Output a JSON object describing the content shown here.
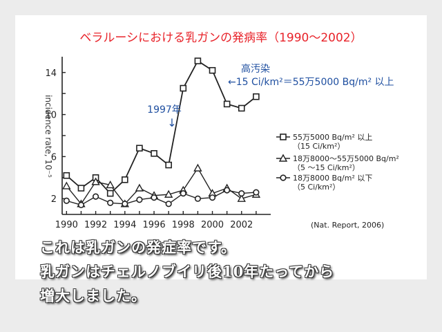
{
  "chart_data": {
    "type": "line",
    "title": "ベラルーシにおける乳ガンの発病率（1990〜2002）",
    "ylabel": "incidence rate, 10⁻⁵",
    "xlabel": "",
    "x": [
      1990,
      1991,
      1992,
      1993,
      1994,
      1995,
      1996,
      1997,
      1998,
      1999,
      2000,
      2001,
      2002,
      2003
    ],
    "x_ticks": [
      "1990",
      "1992",
      "1994",
      "1996",
      "1998",
      "2000",
      "2002"
    ],
    "y_ticks": [
      "2",
      "4",
      "6",
      "8",
      "10",
      "12",
      "14"
    ],
    "xlim": [
      1989.7,
      2004
    ],
    "ylim": [
      0.5,
      15.5
    ],
    "grid": false,
    "legend_position": "right",
    "series": [
      {
        "name": "55万5000 Bq/m² 以上",
        "name_sub": "（15 Ci/km²）",
        "marker": "square",
        "values": [
          4.2,
          3.0,
          4.0,
          2.5,
          3.8,
          6.8,
          6.3,
          5.2,
          12.5,
          15.1,
          14.2,
          11.0,
          10.6,
          11.7
        ]
      },
      {
        "name": "18万8000〜55万5000 Bq/m²",
        "name_sub": "（5 〜15 Ci/km²）",
        "marker": "triangle",
        "values": [
          3.2,
          1.5,
          3.6,
          3.3,
          1.5,
          3.0,
          2.3,
          2.4,
          2.8,
          4.9,
          2.5,
          3.0,
          2.0,
          2.4
        ]
      },
      {
        "name": "18万8000 Bq/m² 以下",
        "name_sub": "（5 Ci/km²）",
        "marker": "circle",
        "values": [
          1.8,
          1.4,
          2.2,
          1.6,
          1.5,
          1.9,
          2.1,
          1.5,
          2.5,
          2.0,
          2.1,
          2.8,
          2.5,
          2.6
        ]
      }
    ],
    "annotations": [
      {
        "text": "1997年",
        "arrow": "↓"
      },
      {
        "text": "高汚染",
        "text2": "←15 Ci/km²＝55万5000 Bq/m² 以上"
      }
    ],
    "source": "(Nat. Report, 2006)"
  },
  "caption": {
    "line1": "これは乳ガンの発症率です。",
    "line2": "乳ガンはチェルノブイリ後10年たってから",
    "line3": "増大しました。"
  },
  "colors": {
    "title": "#e8232a",
    "annotation": "#1f4fa0",
    "line": "#222222"
  }
}
